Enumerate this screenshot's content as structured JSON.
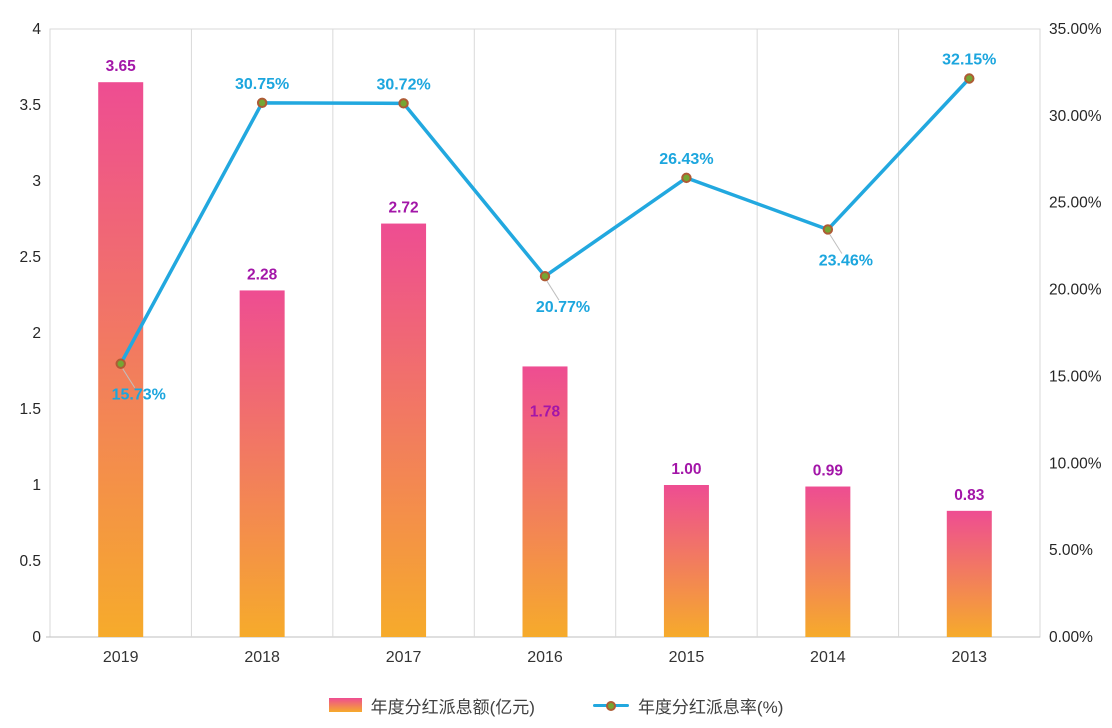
{
  "chart_data": {
    "type": "combo",
    "categories": [
      "2019",
      "2018",
      "2017",
      "2016",
      "2015",
      "2014",
      "2013"
    ],
    "series": [
      {
        "name": "年度分红派息额(亿元)",
        "type": "bar",
        "axis": "left",
        "values": [
          3.65,
          2.28,
          2.72,
          1.78,
          1.0,
          0.99,
          0.83
        ],
        "labels": [
          "3.65",
          "2.28",
          "2.72",
          "1.78",
          "1.00",
          "0.99",
          "0.83"
        ],
        "label_inside": [
          false,
          false,
          false,
          true,
          false,
          false,
          false
        ]
      },
      {
        "name": "年度分红派息率(%)",
        "type": "line",
        "axis": "right",
        "values": [
          15.73,
          30.75,
          30.72,
          20.77,
          26.43,
          23.46,
          32.15
        ],
        "labels": [
          "15.73%",
          "30.75%",
          "30.72%",
          "20.77%",
          "26.43%",
          "23.46%",
          "32.15%"
        ],
        "label_position": [
          "below",
          "above",
          "above",
          "below",
          "above",
          "below",
          "above"
        ]
      }
    ],
    "left_axis": {
      "min": 0,
      "max": 4,
      "step": 0.5,
      "ticks": [
        "0",
        "0.5",
        "1",
        "1.5",
        "2",
        "2.5",
        "3",
        "3.5",
        "4"
      ]
    },
    "right_axis": {
      "min": 0,
      "max": 35,
      "step": 5,
      "ticks": [
        "0.00%",
        "5.00%",
        "10.00%",
        "15.00%",
        "20.00%",
        "25.00%",
        "30.00%",
        "35.00%"
      ]
    },
    "grid": "vertical-category-separators",
    "legend_position": "bottom-center",
    "colors": {
      "bar_gradient_top": "#EE4D92",
      "bar_gradient_bottom": "#F6AB2B",
      "bar_label": "#A316A8",
      "line": "#22A8DF",
      "line_label": "#1CA6DE",
      "marker_fill": "#76A633",
      "marker_border": "#AE5B35",
      "axis_text": "#262626",
      "x_axis_text": "#333333",
      "gridline": "#D9D9D9",
      "axis_bottom_line": "#BFBFBF",
      "leader_line": "#BFBFBF",
      "background": "#FFFFFF"
    }
  }
}
